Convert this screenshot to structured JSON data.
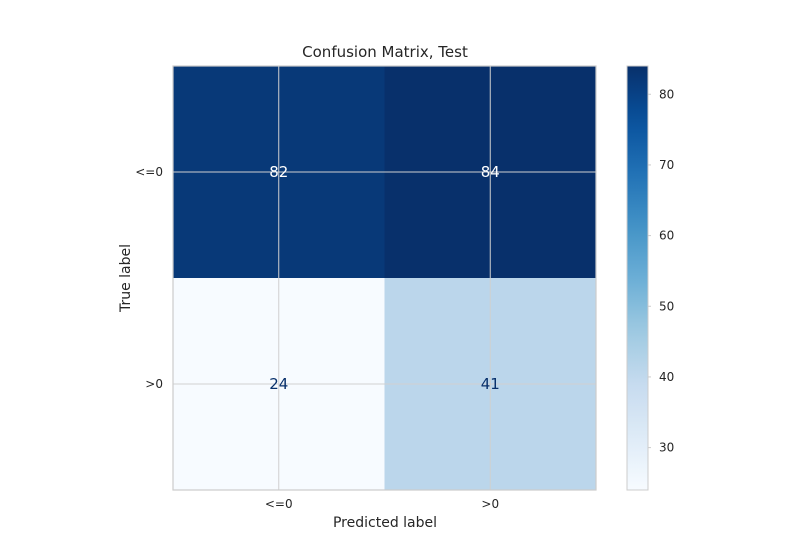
{
  "chart_data": {
    "type": "heatmap",
    "title": "Confusion Matrix, Test",
    "xlabel": "Predicted label",
    "ylabel": "True label",
    "x_categories": [
      "<=0",
      ">0"
    ],
    "y_categories": [
      "<=0",
      ">0"
    ],
    "values": [
      [
        82,
        84
      ],
      [
        24,
        41
      ]
    ],
    "colormap": "Blues",
    "color_range": [
      24,
      84
    ],
    "colorbar_ticks": [
      30,
      40,
      50,
      60,
      70,
      80
    ],
    "grid": true,
    "colors": {
      "light_text": "#ffffff",
      "dark_text": "#08306b"
    }
  }
}
